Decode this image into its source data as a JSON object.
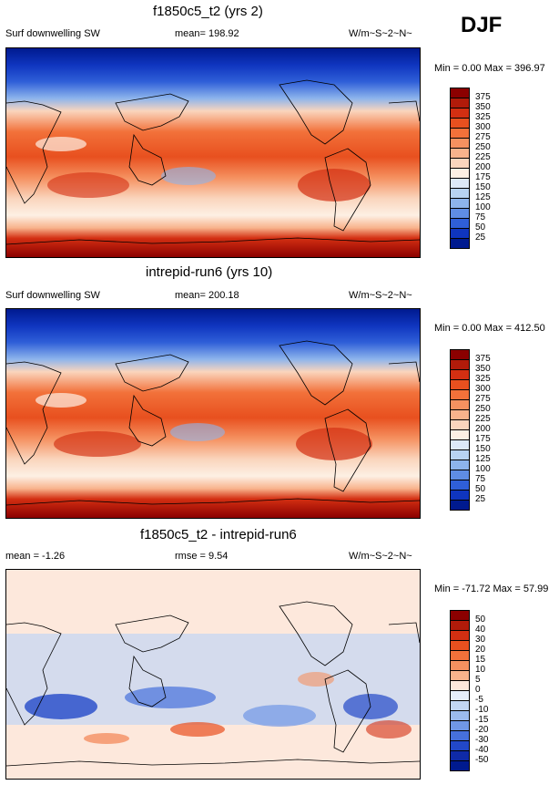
{
  "season": "DJF",
  "panels": [
    {
      "title": "f1850c5_t2 (yrs 2)",
      "left_label": "Surf downwelling SW",
      "mid_label": "mean= 198.92",
      "units": "W/m~S~2~N~",
      "minmax": "Min =   0.00 Max = 396.97",
      "colorbar": {
        "labels": [
          "375",
          "350",
          "325",
          "300",
          "275",
          "250",
          "225",
          "200",
          "175",
          "150",
          "125",
          "100",
          "75",
          "50",
          "25"
        ],
        "colors": [
          "#8b0000",
          "#b11b0a",
          "#d32f12",
          "#e8501f",
          "#f2713a",
          "#f59160",
          "#f8b38c",
          "#fad5bd",
          "#fdf0e4",
          "#dde9f8",
          "#b8d3f2",
          "#8db4ec",
          "#5f8de4",
          "#2f5fd8",
          "#0f35bf",
          "#001a8f"
        ]
      }
    },
    {
      "title": "intrepid-run6 (yrs 10)",
      "left_label": "Surf downwelling SW",
      "mid_label": "mean= 200.18",
      "units": "W/m~S~2~N~",
      "minmax": "Min =   0.00 Max = 412.50",
      "colorbar": {
        "labels": [
          "375",
          "350",
          "325",
          "300",
          "275",
          "250",
          "225",
          "200",
          "175",
          "150",
          "125",
          "100",
          "75",
          "50",
          "25"
        ],
        "colors": [
          "#8b0000",
          "#b11b0a",
          "#d32f12",
          "#e8501f",
          "#f2713a",
          "#f59160",
          "#f8b38c",
          "#fad5bd",
          "#fdf0e4",
          "#dde9f8",
          "#b8d3f2",
          "#8db4ec",
          "#5f8de4",
          "#2f5fd8",
          "#0f35bf",
          "#001a8f"
        ]
      }
    },
    {
      "title": "f1850c5_t2 - intrepid-run6",
      "left_label": "mean =  -1.26",
      "mid_label": "rmse =   9.54",
      "units": "W/m~S~2~N~",
      "minmax": "Min = -71.72 Max =  57.99",
      "colorbar": {
        "labels": [
          "50",
          "40",
          "30",
          "20",
          "15",
          "10",
          "5",
          "0",
          "-5",
          "-10",
          "-15",
          "-20",
          "-30",
          "-40",
          "-50"
        ],
        "colors": [
          "#8b0000",
          "#b11b0a",
          "#d32f12",
          "#e8501f",
          "#f2713a",
          "#f59160",
          "#f8b38c",
          "#fde8dc",
          "#e6eefa",
          "#c2d6f3",
          "#9bbaee",
          "#7097e6",
          "#4670dc",
          "#2248c8",
          "#0f2aa8",
          "#001a8f"
        ]
      }
    }
  ]
}
